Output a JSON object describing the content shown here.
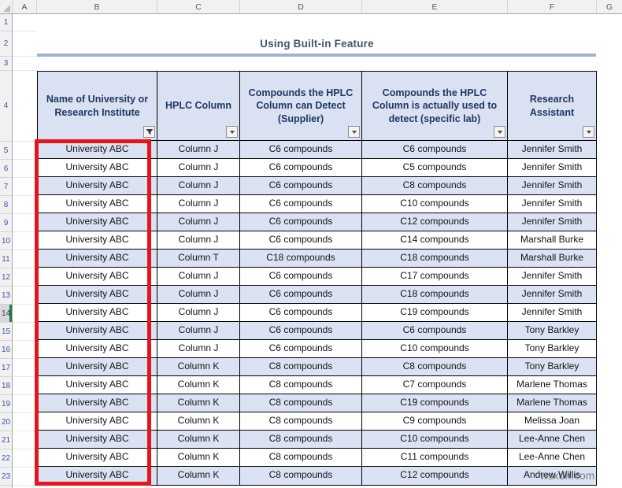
{
  "sheet": {
    "column_letters": [
      "A",
      "B",
      "C",
      "D",
      "E",
      "F",
      "G"
    ],
    "first_row_number": 1,
    "last_row_number": 23,
    "active_row": 14
  },
  "title": {
    "text": "Using Built-in Feature"
  },
  "table": {
    "first_data_row_number": 5,
    "headers": [
      {
        "label": "Name of University or Research Institute",
        "filter_state": "filtered"
      },
      {
        "label": "HPLC Column",
        "filter_state": "dropdown"
      },
      {
        "label": "Compounds the HPLC Column can Detect (Supplier)",
        "filter_state": "dropdown"
      },
      {
        "label": "Compounds the HPLC Column is actually used to detect (specific lab)",
        "filter_state": "dropdown"
      },
      {
        "label": "Research Assistant",
        "filter_state": "dropdown"
      }
    ],
    "rows": [
      [
        "University ABC",
        "Column J",
        "C6 compounds",
        "C6 compounds",
        "Jennifer Smith"
      ],
      [
        "University ABC",
        "Column J",
        "C6 compounds",
        "C5 compounds",
        "Jennifer Smith"
      ],
      [
        "University ABC",
        "Column J",
        "C6 compounds",
        "C8 compounds",
        "Jennifer Smith"
      ],
      [
        "University ABC",
        "Column J",
        "C6 compounds",
        "C10 compounds",
        "Jennifer Smith"
      ],
      [
        "University ABC",
        "Column J",
        "C6 compounds",
        "C12 compounds",
        "Jennifer Smith"
      ],
      [
        "University ABC",
        "Column J",
        "C6 compounds",
        "C14 compounds",
        "Marshall Burke"
      ],
      [
        "University ABC",
        "Column T",
        "C18 compounds",
        "C18 compounds",
        "Marshall Burke"
      ],
      [
        "University ABC",
        "Column J",
        "C6 compounds",
        "C17 compounds",
        "Jennifer Smith"
      ],
      [
        "University ABC",
        "Column J",
        "C6 compounds",
        "C18 compounds",
        "Jennifer Smith"
      ],
      [
        "University ABC",
        "Column J",
        "C6 compounds",
        "C19 compounds",
        "Jennifer Smith"
      ],
      [
        "University ABC",
        "Column J",
        "C6 compounds",
        "C6 compounds",
        "Tony Barkley"
      ],
      [
        "University ABC",
        "Column J",
        "C6 compounds",
        "C10 compounds",
        "Tony Barkley"
      ],
      [
        "University ABC",
        "Column K",
        "C8 compounds",
        "C8 compounds",
        "Tony Barkley"
      ],
      [
        "University ABC",
        "Column K",
        "C8 compounds",
        "C7 compounds",
        "Marlene Thomas"
      ],
      [
        "University ABC",
        "Column K",
        "C8 compounds",
        "C19 compounds",
        "Marlene Thomas"
      ],
      [
        "University ABC",
        "Column K",
        "C8 compounds",
        "C9 compounds",
        "Melissa Joan"
      ],
      [
        "University ABC",
        "Column K",
        "C8 compounds",
        "C10 compounds",
        "Lee-Anne Chen"
      ],
      [
        "University ABC",
        "Column K",
        "C8 compounds",
        "C11 compounds",
        "Lee-Anne Chen"
      ],
      [
        "University ABC",
        "Column K",
        "C8 compounds",
        "C12 compounds",
        "Andrew Willis"
      ]
    ]
  },
  "highlight": {
    "target": "column-B-filtered-values",
    "color": "#E4151B"
  },
  "watermark": {
    "text": "wsxdn.com"
  },
  "colors": {
    "header_fill": "#D9E1F2",
    "band_fill": "#DAE2F3",
    "header_text": "#1F3864",
    "title_text": "#44546A",
    "title_underline": "#9FB3D9",
    "active_row_accent": "#1E7E46"
  }
}
